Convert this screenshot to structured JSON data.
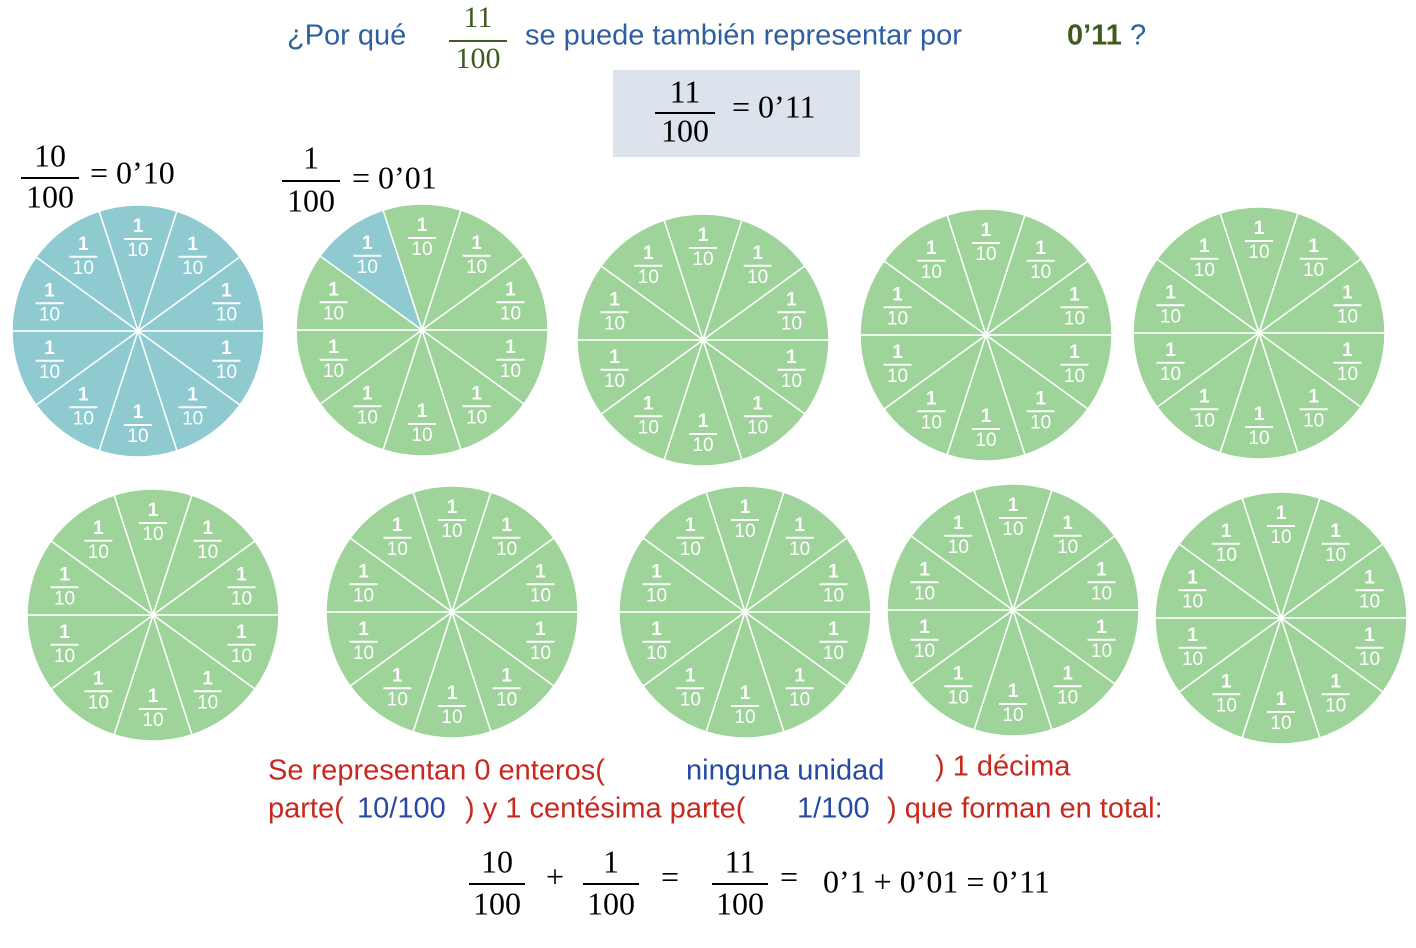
{
  "title": {
    "prefix": "¿Por qué",
    "fraction": {
      "numerator": "11",
      "denominator": "100"
    },
    "middle": "se puede también representar por",
    "decimal": "0’11",
    "suffix": "?"
  },
  "box": {
    "fraction": {
      "numerator": "11",
      "denominator": "100"
    },
    "equals": "= 0’11"
  },
  "labels": [
    {
      "fraction": {
        "numerator": "10",
        "denominator": "100"
      },
      "equals": "= 0’10"
    },
    {
      "fraction": {
        "numerator": "1",
        "denominator": "100"
      },
      "equals": "= 0’01"
    }
  ],
  "wheels": {
    "sector_label": {
      "numerator": "1",
      "denominator": "10"
    },
    "colors": {
      "shaded": "#8ecad0",
      "plain": "#9ed39a"
    },
    "items": [
      {
        "shaded": 10
      },
      {
        "shaded": 1
      },
      {
        "shaded": 0
      },
      {
        "shaded": 0
      },
      {
        "shaded": 0
      },
      {
        "shaded": 0
      },
      {
        "shaded": 0
      },
      {
        "shaded": 0
      },
      {
        "shaded": 0
      },
      {
        "shaded": 0
      }
    ]
  },
  "explanation": {
    "line1": [
      "Se representan 0 enteros(",
      "ninguna unidad",
      ") 1 décima"
    ],
    "line2": [
      "parte(",
      "10/100",
      ") y 1 centésima parte(",
      "1/100",
      ") que forman en total:"
    ]
  },
  "equation": {
    "terms": [
      {
        "numerator": "10",
        "denominator": "100"
      },
      "+",
      {
        "numerator": "1",
        "denominator": "100"
      },
      "=",
      {
        "numerator": "11",
        "denominator": "100"
      },
      "=",
      "0’1 + 0’01 = 0’11"
    ]
  }
}
